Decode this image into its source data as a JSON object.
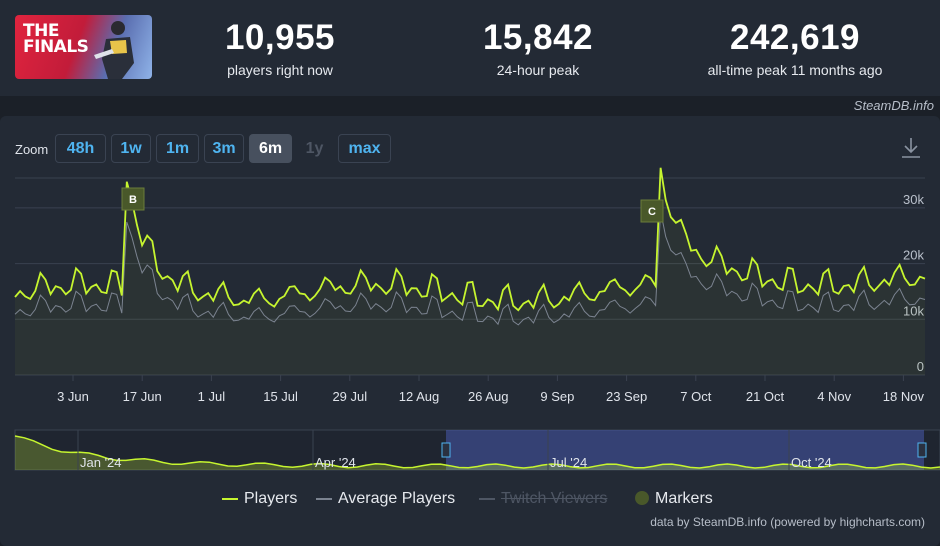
{
  "game": {
    "logo_line1": "THE",
    "logo_line2": "FINALS",
    "colors": {
      "brand": "#e0243e"
    }
  },
  "stats": [
    {
      "value": "10,955",
      "label": "players right now"
    },
    {
      "value": "15,842",
      "label": "24-hour peak"
    },
    {
      "value": "242,619",
      "label": "all-time peak 11 months ago"
    }
  ],
  "credit_top": "SteamDB.info",
  "zoom": {
    "label": "Zoom",
    "buttons": [
      {
        "label": "48h",
        "state": "normal"
      },
      {
        "label": "1w",
        "state": "normal"
      },
      {
        "label": "1m",
        "state": "normal"
      },
      {
        "label": "3m",
        "state": "normal"
      },
      {
        "label": "6m",
        "state": "active"
      },
      {
        "label": "1y",
        "state": "disabled"
      },
      {
        "label": "max",
        "state": "normal"
      }
    ]
  },
  "download_icon": "download-icon",
  "chart_data": {
    "type": "line",
    "y_ticks": [
      "0",
      "10k",
      "20k",
      "30k"
    ],
    "ylim": [
      0,
      35000
    ],
    "x_ticks": [
      "3 Jun",
      "17 Jun",
      "1 Jul",
      "15 Jul",
      "29 Jul",
      "12 Aug",
      "26 Aug",
      "9 Sep",
      "23 Sep",
      "7 Oct",
      "21 Oct",
      "4 Nov",
      "18 Nov"
    ],
    "markers": [
      "B",
      "C"
    ],
    "series": [
      {
        "name": "Players",
        "color": "#c6f52f"
      },
      {
        "name": "Average Players",
        "color": "#7b8390"
      }
    ],
    "navigator_labels": [
      "Jan '24",
      "Apr '24",
      "Jul '24",
      "Oct '24"
    ]
  },
  "legend": {
    "players": "Players",
    "average": "Average Players",
    "twitch": "Twitch Viewers",
    "markers": "Markers"
  },
  "credit_bottom": "data by SteamDB.info (powered by highcharts.com)"
}
